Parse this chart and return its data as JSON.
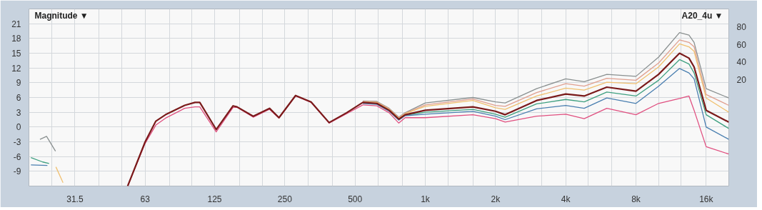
{
  "chart_data": {
    "type": "line",
    "title": "Magnitude ▼",
    "annotations": [
      "A20_4u ▼"
    ],
    "log": "x",
    "grid": true,
    "marker": "none",
    "line_style": "solid",
    "xlim": [
      20,
      20000
    ],
    "ylim": [
      -12,
      24
    ],
    "y2lim": [
      -100,
      100
    ],
    "xticks": [
      {
        "value": 20,
        "label": null
      },
      {
        "value": 25,
        "label": null
      },
      31.5,
      {
        "value": 40,
        "label": null
      },
      {
        "value": 50,
        "label": null
      },
      63,
      {
        "value": 80,
        "label": null
      },
      {
        "value": 100,
        "label": null
      },
      125,
      {
        "value": 160,
        "label": null
      },
      {
        "value": 200,
        "label": null
      },
      250,
      {
        "value": 315,
        "label": null
      },
      {
        "value": 400,
        "label": null
      },
      500,
      {
        "value": 630,
        "label": null
      },
      {
        "value": 800,
        "label": null
      },
      {
        "value": 1000,
        "label": "1k"
      },
      {
        "value": 1250,
        "label": null
      },
      {
        "value": 1600,
        "label": null
      },
      {
        "value": 2000,
        "label": "2k"
      },
      {
        "value": 2500,
        "label": null
      },
      {
        "value": 3150,
        "label": null
      },
      {
        "value": 4000,
        "label": "4k"
      },
      {
        "value": 5000,
        "label": null
      },
      {
        "value": 6300,
        "label": null
      },
      {
        "value": 8000,
        "label": "8k"
      },
      {
        "value": 10000,
        "label": null
      },
      {
        "value": 12500,
        "label": null
      },
      {
        "value": 16000,
        "label": "16k"
      },
      {
        "value": 20000,
        "label": null
      }
    ],
    "yticks": [
      -9,
      -6,
      -3,
      0,
      3,
      6,
      9,
      12,
      15,
      18,
      21
    ],
    "y2ticks": [
      20,
      40,
      60,
      80
    ],
    "x": [
      53,
      63,
      70,
      77,
      93,
      103,
      108,
      127,
      150,
      156,
      183,
      215,
      236,
      278,
      324,
      387,
      460,
      540,
      620,
      700,
      770,
      820,
      1000,
      1600,
      2000,
      2200,
      3000,
      4000,
      4800,
      6000,
      8000,
      10000,
      12300,
      13500,
      14200,
      16000,
      20000
    ],
    "series": [
      {
        "color": "#8a9090",
        "values": [
          null,
          null,
          null,
          null,
          null,
          null,
          null,
          null,
          null,
          null,
          null,
          null,
          null,
          null,
          null,
          null,
          null,
          5.3,
          5.2,
          3.8,
          2.0,
          2.9,
          4.9,
          6.0,
          5.1,
          4.9,
          7.8,
          9.8,
          9.2,
          10.7,
          10.3,
          14.2,
          19.2,
          18.7,
          17.2,
          7.8,
          5.9
        ]
      },
      {
        "color": "#e0a090",
        "values": [
          null,
          null,
          null,
          null,
          null,
          null,
          null,
          null,
          null,
          null,
          null,
          null,
          null,
          null,
          null,
          null,
          null,
          5.2,
          5.1,
          3.7,
          1.9,
          2.8,
          4.5,
          5.7,
          4.4,
          4.2,
          7.0,
          8.8,
          8.3,
          9.9,
          9.5,
          13.0,
          17.7,
          17.2,
          16.3,
          6.6,
          4.4
        ]
      },
      {
        "color": "#f0c070",
        "values": [
          null,
          null,
          null,
          null,
          null,
          null,
          null,
          null,
          null,
          null,
          null,
          null,
          null,
          null,
          null,
          null,
          null,
          5.1,
          5.0,
          3.6,
          1.8,
          2.7,
          4.2,
          5.4,
          3.9,
          3.6,
          6.3,
          7.9,
          7.5,
          9.1,
          8.8,
          12.2,
          16.9,
          16.3,
          15.4,
          5.9,
          3.0
        ]
      },
      {
        "color": "#3fa080",
        "values": [
          null,
          null,
          null,
          null,
          null,
          null,
          null,
          null,
          null,
          null,
          null,
          null,
          null,
          null,
          null,
          null,
          null,
          4.9,
          4.7,
          3.3,
          1.5,
          2.4,
          3.0,
          3.6,
          2.6,
          2.0,
          4.7,
          5.6,
          5.1,
          7.1,
          6.3,
          9.5,
          13.7,
          12.8,
          11.0,
          2.5,
          -0.3
        ]
      },
      {
        "color": "#4a7fb0",
        "values": [
          null,
          null,
          null,
          null,
          null,
          null,
          null,
          null,
          null,
          null,
          null,
          null,
          null,
          null,
          null,
          null,
          null,
          4.8,
          4.6,
          3.2,
          1.4,
          2.3,
          2.6,
          3.2,
          2.2,
          1.5,
          3.7,
          4.4,
          3.8,
          5.9,
          4.8,
          8.3,
          11.9,
          11.0,
          9.8,
          0.0,
          -2.5
        ]
      },
      {
        "color": "#e05080",
        "values": [
          -12,
          -3.3,
          0.4,
          1.8,
          3.8,
          4.1,
          4.1,
          -1.0,
          4.0,
          4.0,
          2.0,
          3.6,
          1.8,
          6.3,
          5.0,
          0.8,
          2.7,
          4.5,
          4.3,
          2.9,
          0.8,
          1.9,
          1.9,
          2.5,
          1.7,
          1.0,
          2.2,
          2.6,
          1.7,
          3.8,
          2.5,
          4.8,
          5.8,
          6.3,
          3.4,
          -4.0,
          -5.5
        ]
      },
      {
        "color": "#7a1a1a",
        "values": [
          -12,
          -3,
          1.2,
          2.5,
          4.4,
          5.0,
          5.0,
          -0.5,
          4.3,
          4.1,
          2.2,
          3.8,
          1.9,
          6.4,
          5.1,
          0.9,
          2.9,
          5.0,
          4.8,
          3.4,
          1.6,
          2.5,
          3.4,
          4.1,
          3.2,
          2.5,
          5.4,
          6.7,
          6.3,
          8.1,
          7.3,
          10.7,
          15.0,
          14.0,
          12.2,
          3.4,
          1.0
        ]
      },
      {
        "color": "#8a9090",
        "x": [
          22.3,
          23.8,
          26
        ],
        "values": [
          -2.5,
          -1.9,
          -4.9
        ]
      },
      {
        "color": "#3fa080",
        "x": [
          20.4,
          22.9,
          24.4
        ],
        "values": [
          -6.2,
          -7.1,
          -7.4
        ]
      },
      {
        "color": "#4a7fb0",
        "x": [
          20.4,
          24
        ],
        "values": [
          -7.7,
          -7.8
        ]
      },
      {
        "color": "#f0c070",
        "x": [
          26.1,
          28
        ],
        "values": [
          -8.1,
          -11.3
        ]
      }
    ]
  }
}
